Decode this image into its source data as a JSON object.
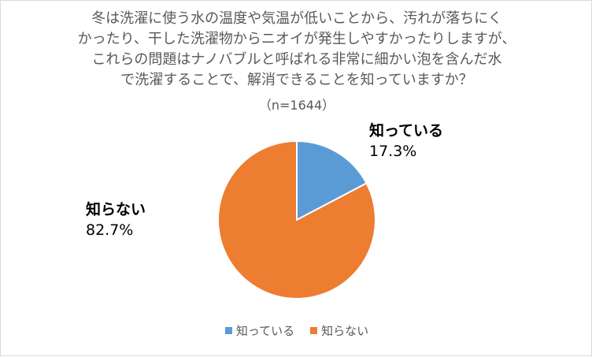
{
  "chart_data": {
    "type": "pie",
    "title_lines": [
      "冬は洗濯に使う水の温度や気温が低いことから、汚れが落ちにく",
      "かったり、干した洗濯物からニオイが発生しやすかったりしますが、",
      "これらの問題はナノバブルと呼ばれる非常に細かい泡を含んだ水",
      "で洗濯することで、解消できることを知っていますか？"
    ],
    "subtitle": "（n=1644）",
    "categories": [
      "知っている",
      "知らない"
    ],
    "values": [
      17.3,
      82.7
    ],
    "value_labels": [
      "17.3%",
      "82.7%"
    ],
    "colors": [
      "#5b9bd5",
      "#ed7d31"
    ],
    "legend_position": "bottom"
  }
}
